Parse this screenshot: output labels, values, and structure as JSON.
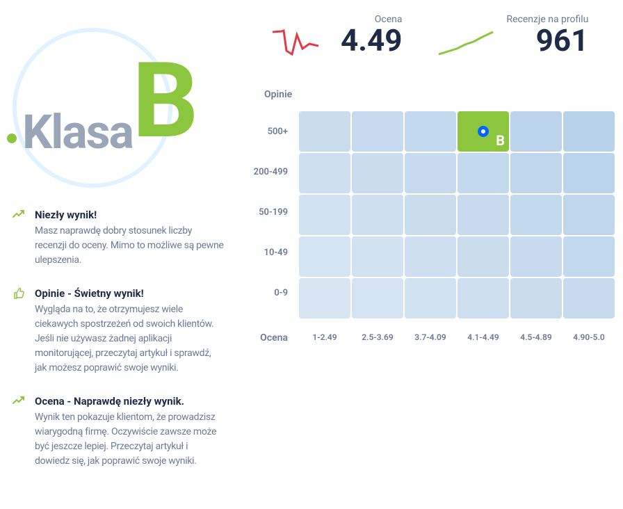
{
  "badge": {
    "prefix": "Klasa",
    "grade": "B",
    "grade_color": "#8cc63f"
  },
  "stats": {
    "rating": {
      "label": "Ocena",
      "value": "4.49",
      "spark_color": "#e63946"
    },
    "reviews": {
      "label": "Recenzje na profilu",
      "value": "961",
      "spark_color": "#8cc63f"
    }
  },
  "tips": [
    {
      "icon": "trend-up",
      "title": "Niezły wynik!",
      "text": "Masz naprawdę dobry stosunek liczby recenzji do oceny. Mimo to możliwe są pewne ulepszenia."
    },
    {
      "icon": "thumbs-up",
      "title": "Opinie - Świetny wynik!",
      "text": "Wygląda na to, że otrzymujesz wiele ciekawych spostrzeżeń od swoich klientów. Jeśli nie używasz żadnej aplikacji monitorującej, przeczytaj artykuł i sprawdź, jak możesz poprawić swoje wyniki."
    },
    {
      "icon": "trend-up",
      "title": "Ocena - Naprawdę niezły wynik.",
      "text": "Wynik ten pokazuje klientom, że prowadzisz wiarygodną firmę. Oczywiście zawsze może być jeszcze lepiej. Przeczytaj artykuł i dowiedz się, jak poprawić swoje wyniki."
    }
  ],
  "heatmap": {
    "y_title": "Opinie",
    "x_title": "Ocena",
    "y_labels": [
      "500+",
      "200-499",
      "50-199",
      "10-49",
      "0-9"
    ],
    "x_labels": [
      "1-2.49",
      "2.5-3.69",
      "3.7-4.09",
      "4.1-4.49",
      "4.5-4.89",
      "4.90-5.0"
    ],
    "base_color": "#b8d2ea",
    "highlight_color": "#8cc63f",
    "marker_color": "#0066ff",
    "highlight_cell": {
      "row": 0,
      "col": 3,
      "letter": "B"
    },
    "cell_opacities": [
      [
        0.75,
        0.8,
        0.85,
        1.0,
        0.95,
        1.0
      ],
      [
        0.7,
        0.75,
        0.8,
        0.85,
        0.9,
        0.95
      ],
      [
        0.65,
        0.7,
        0.75,
        0.8,
        0.85,
        0.9
      ],
      [
        0.6,
        0.65,
        0.7,
        0.75,
        0.8,
        0.85
      ],
      [
        0.55,
        0.6,
        0.65,
        0.7,
        0.75,
        0.8
      ]
    ]
  }
}
